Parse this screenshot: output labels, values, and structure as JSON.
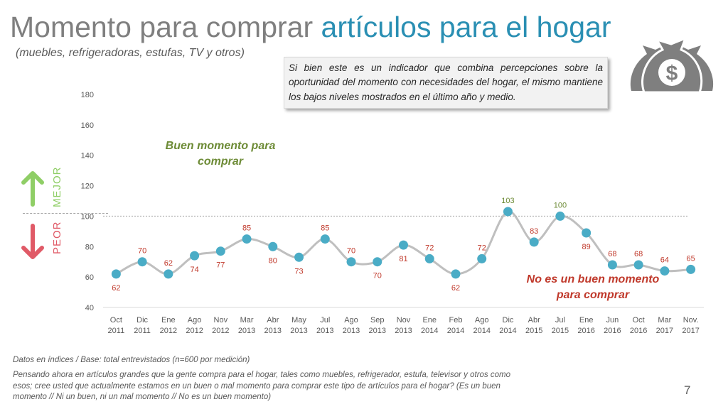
{
  "title_main": "Momento para comprar",
  "title_accent": "artículos para el hogar",
  "subtitle": "(muebles, refrigeradoras, estufas, TV y otros)",
  "note": "Si bien este es un indicador que combina percepciones sobre la oportunidad del momento con necesidades del hogar, el mismo mantiene los bajos niveles mostrados en el último año y medio.",
  "indicator": {
    "better": "MEJOR",
    "worse": "PEOR"
  },
  "zone_good": "Buen momento para comprar",
  "zone_bad": "No es un buen momento para comprar",
  "footnote_base": "Datos en índices / Base: total entrevistados (n=600 por medición)",
  "footnote_question": "Pensando ahora en artículos grandes que la gente compra para el hogar, tales como muebles, refrigerador, estufa, televisor y otros como esos; cree usted que actualmente estamos en un buen o mal momento para comprar este tipo de artículos para el hogar? (Es un buen momento // Ni un buen, ni un mal momento // No es un buen momento)",
  "page_number": "7",
  "colors": {
    "title_gray": "#7f7f7f",
    "title_accent": "#2a8fb3",
    "marker": "#4aacc6",
    "line": "#bfbfbf",
    "label_low": "#c0392b",
    "label_high": "#6d8b36",
    "arrow_up": "#8fce66",
    "arrow_down": "#e05a67",
    "icon": "#7f7f7f"
  },
  "icon": "money-bag-dollar-icon",
  "chart_data": {
    "type": "line",
    "categories": [
      [
        "Oct",
        "2011"
      ],
      [
        "Dic",
        "2011"
      ],
      [
        "Ene",
        "2012"
      ],
      [
        "Ago",
        "2012"
      ],
      [
        "Nov",
        "2012"
      ],
      [
        "Mar",
        "2013"
      ],
      [
        "Abr",
        "2013"
      ],
      [
        "May",
        "2013"
      ],
      [
        "Jul",
        "2013"
      ],
      [
        "Ago",
        "2013"
      ],
      [
        "Sep",
        "2013"
      ],
      [
        "Nov",
        "2013"
      ],
      [
        "Ene",
        "2014"
      ],
      [
        "Feb",
        "2014"
      ],
      [
        "Ago",
        "2014"
      ],
      [
        "Dic",
        "2014"
      ],
      [
        "Abr",
        "2015"
      ],
      [
        "Jul",
        "2015"
      ],
      [
        "Ene",
        "2016"
      ],
      [
        "Jun",
        "2016"
      ],
      [
        "Oct",
        "2016"
      ],
      [
        "Mar",
        "2017"
      ],
      [
        "Nov.",
        "2017"
      ]
    ],
    "values": [
      62,
      70,
      62,
      74,
      77,
      85,
      80,
      73,
      85,
      70,
      70,
      81,
      72,
      62,
      72,
      103,
      83,
      100,
      89,
      68,
      68,
      64,
      65
    ],
    "label_positions": [
      "below",
      "above",
      "above",
      "below",
      "below",
      "above",
      "below",
      "below",
      "above",
      "above",
      "below",
      "below",
      "above",
      "below",
      "above",
      "above",
      "above",
      "above",
      "below",
      "above",
      "above",
      "above",
      "above"
    ],
    "ylim": [
      40,
      180
    ],
    "yticks": [
      40,
      60,
      80,
      100,
      120,
      140,
      160,
      180
    ],
    "reference_line": 100,
    "grid": false,
    "smooth": true
  }
}
